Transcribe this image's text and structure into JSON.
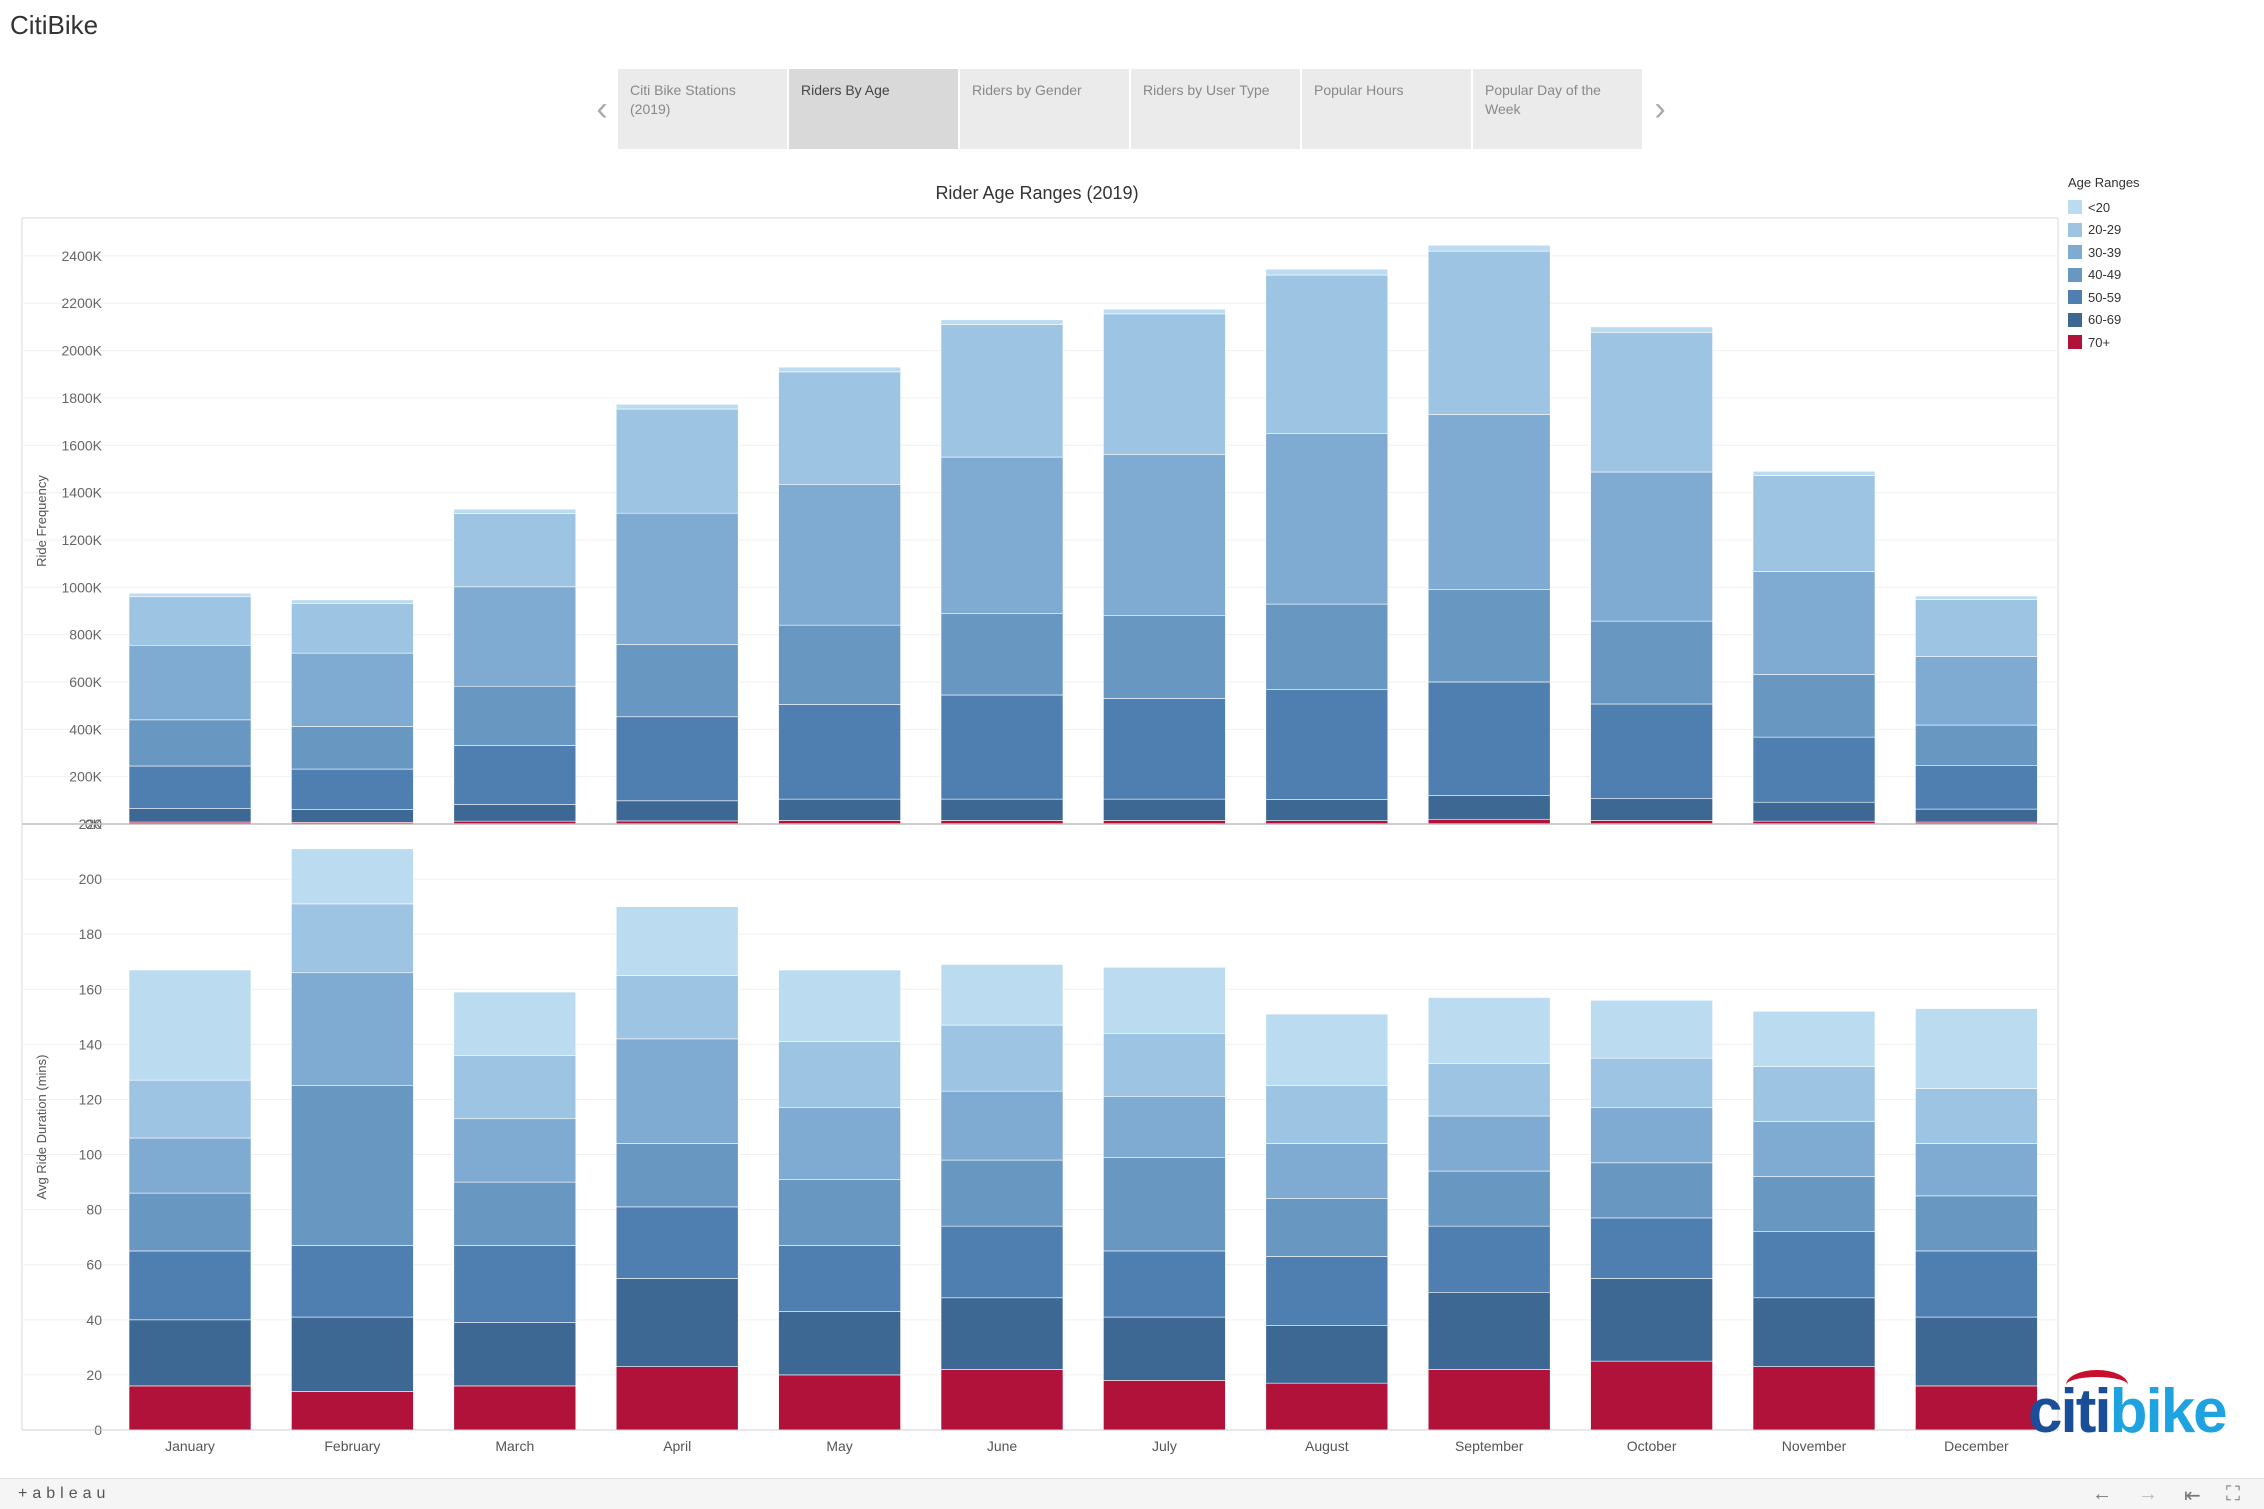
{
  "app": {
    "title": "CitiBike"
  },
  "story": {
    "tabs": [
      {
        "label": "Citi Bike Stations (2019)",
        "active": false
      },
      {
        "label": "Riders By Age",
        "active": true
      },
      {
        "label": "Riders by Gender",
        "active": false
      },
      {
        "label": "Riders by User Type",
        "active": false
      },
      {
        "label": "Popular Hours",
        "active": false
      },
      {
        "label": "Popular Day of the Week",
        "active": false
      }
    ]
  },
  "legend": {
    "title": "Age Ranges",
    "items": [
      {
        "label": "<20",
        "color": "#bbdcf0"
      },
      {
        "label": "20-29",
        "color": "#9dc4e3"
      },
      {
        "label": "30-39",
        "color": "#7faad2"
      },
      {
        "label": "40-49",
        "color": "#6897c2"
      },
      {
        "label": "50-59",
        "color": "#4f7fb0"
      },
      {
        "label": "60-69",
        "color": "#3d6893"
      },
      {
        "label": "70+",
        "color": "#b0123a"
      }
    ]
  },
  "logo": {
    "citi": "citi",
    "bike": "bike"
  },
  "footer": {
    "brand": "+ableau"
  },
  "chart_data": [
    {
      "type": "bar",
      "stacked": true,
      "title": "Rider Age Ranges (2019)",
      "xlabel": "",
      "ylabel": "Ride Frequency",
      "ylim": [
        0,
        2560000
      ],
      "yticks": [
        {
          "value": 0,
          "label": "0K"
        },
        {
          "value": 200000,
          "label": "200K"
        },
        {
          "value": 400000,
          "label": "400K"
        },
        {
          "value": 600000,
          "label": "600K"
        },
        {
          "value": 800000,
          "label": "800K"
        },
        {
          "value": 1000000,
          "label": "1000K"
        },
        {
          "value": 1200000,
          "label": "1200K"
        },
        {
          "value": 1400000,
          "label": "1400K"
        },
        {
          "value": 1600000,
          "label": "1600K"
        },
        {
          "value": 1800000,
          "label": "1800K"
        },
        {
          "value": 2000000,
          "label": "2000K"
        },
        {
          "value": 2200000,
          "label": "2200K"
        },
        {
          "value": 2400000,
          "label": "2400K"
        }
      ],
      "categories": [
        "January",
        "February",
        "March",
        "April",
        "May",
        "June",
        "July",
        "August",
        "September",
        "October",
        "November",
        "December"
      ],
      "series": [
        {
          "name": "70+",
          "values": [
            8000,
            7000,
            12000,
            13000,
            15000,
            15000,
            15000,
            14000,
            20000,
            15000,
            12000,
            8000
          ]
        },
        {
          "name": "60-69",
          "values": [
            57000,
            55000,
            70000,
            85000,
            90000,
            90000,
            90000,
            90000,
            100000,
            92000,
            80000,
            55000
          ]
        },
        {
          "name": "50-59",
          "values": [
            180000,
            170000,
            250000,
            355000,
            400000,
            440000,
            425000,
            465000,
            480000,
            400000,
            275000,
            185000
          ]
        },
        {
          "name": "40-49",
          "values": [
            195000,
            180000,
            250000,
            305000,
            335000,
            345000,
            350000,
            360000,
            390000,
            350000,
            265000,
            170000
          ]
        },
        {
          "name": "30-39",
          "values": [
            315000,
            310000,
            420000,
            555000,
            595000,
            660000,
            680000,
            720000,
            740000,
            630000,
            435000,
            290000
          ]
        },
        {
          "name": "20-29",
          "values": [
            205000,
            210000,
            310000,
            440000,
            475000,
            560000,
            595000,
            670000,
            690000,
            590000,
            405000,
            240000
          ]
        },
        {
          "name": "<20",
          "values": [
            15000,
            15000,
            18000,
            20000,
            20000,
            20000,
            20000,
            25000,
            25000,
            23000,
            18000,
            15000
          ]
        }
      ]
    },
    {
      "type": "bar",
      "stacked": true,
      "xlabel": "",
      "ylabel": "Avg Ride Duration (mins)",
      "ylim": [
        0,
        220
      ],
      "yticks": [
        {
          "value": 0,
          "label": "0"
        },
        {
          "value": 20,
          "label": "20"
        },
        {
          "value": 40,
          "label": "40"
        },
        {
          "value": 60,
          "label": "60"
        },
        {
          "value": 80,
          "label": "80"
        },
        {
          "value": 100,
          "label": "100"
        },
        {
          "value": 120,
          "label": "120"
        },
        {
          "value": 140,
          "label": "140"
        },
        {
          "value": 160,
          "label": "160"
        },
        {
          "value": 180,
          "label": "180"
        },
        {
          "value": 200,
          "label": "200"
        },
        {
          "value": 220,
          "label": "220"
        }
      ],
      "categories": [
        "January",
        "February",
        "March",
        "April",
        "May",
        "June",
        "July",
        "August",
        "September",
        "October",
        "November",
        "December"
      ],
      "series": [
        {
          "name": "70+",
          "values": [
            16,
            14,
            16,
            23,
            20,
            22,
            18,
            17,
            22,
            25,
            23,
            16
          ]
        },
        {
          "name": "60-69",
          "values": [
            24,
            27,
            23,
            32,
            23,
            26,
            23,
            21,
            28,
            30,
            25,
            25
          ]
        },
        {
          "name": "50-59",
          "values": [
            25,
            26,
            28,
            26,
            24,
            26,
            24,
            25,
            24,
            22,
            24,
            24
          ]
        },
        {
          "name": "40-49",
          "values": [
            21,
            58,
            23,
            23,
            24,
            24,
            34,
            21,
            20,
            20,
            20,
            20
          ]
        },
        {
          "name": "30-39",
          "values": [
            20,
            41,
            23,
            38,
            26,
            25,
            22,
            20,
            20,
            20,
            20,
            19
          ]
        },
        {
          "name": "20-29",
          "values": [
            21,
            25,
            23,
            23,
            24,
            24,
            23,
            21,
            19,
            18,
            20,
            20
          ]
        },
        {
          "name": "<20",
          "values": [
            40,
            20,
            23,
            25,
            26,
            22,
            24,
            26,
            24,
            21,
            20,
            29
          ]
        }
      ]
    }
  ]
}
